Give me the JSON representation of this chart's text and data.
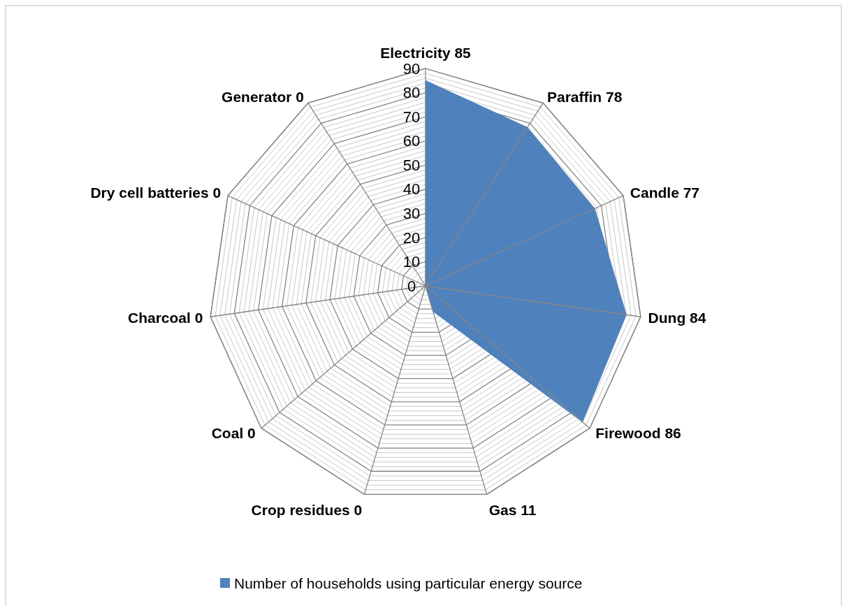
{
  "chart_data": {
    "type": "radar",
    "categories": [
      "Electricity 85",
      "Paraffin 78",
      "Candle 77",
      "Dung 84",
      "Firewood 86",
      "Gas 11",
      "Crop residues 0",
      "Coal 0",
      "Charcoal 0",
      "Dry cell batteries 0",
      "Generator 0"
    ],
    "series": [
      {
        "name": "Number of households using particular energy source",
        "color": "#4f81bd",
        "values": [
          85,
          78,
          77,
          84,
          86,
          11,
          0,
          0,
          0,
          0,
          0
        ]
      }
    ],
    "ylim": [
      0,
      90
    ],
    "yticks": [
      0,
      10,
      20,
      30,
      40,
      50,
      60,
      70,
      80,
      90
    ],
    "grid": true,
    "legend": "bottom"
  }
}
